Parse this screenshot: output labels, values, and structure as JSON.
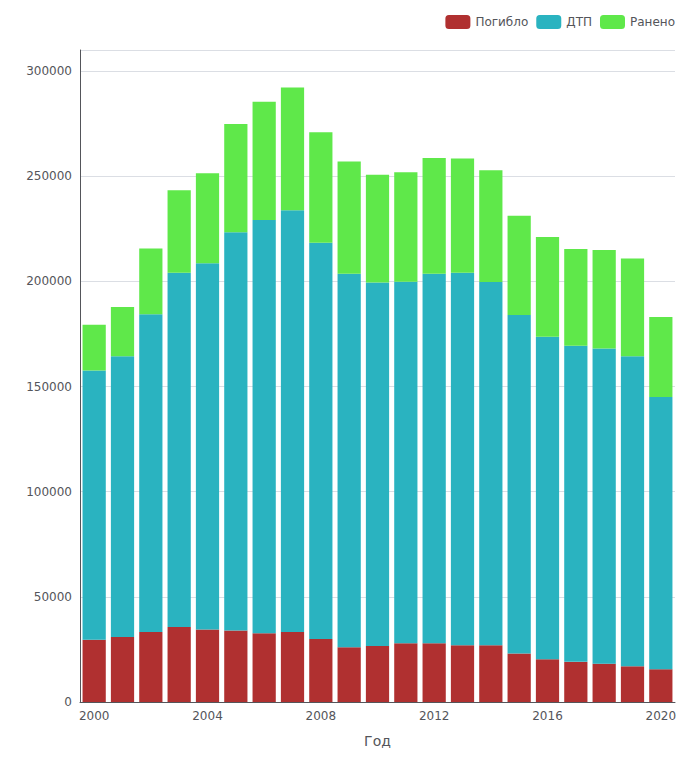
{
  "chart_data": {
    "type": "bar",
    "stacked": true,
    "xlabel": "Год",
    "categories": [
      "2000",
      null,
      null,
      null,
      "2004",
      null,
      null,
      null,
      "2008",
      null,
      null,
      null,
      "2012",
      null,
      null,
      null,
      "2016",
      null,
      null,
      null,
      "2020"
    ],
    "series": [
      {
        "name": "Погибло",
        "color": "#b03030",
        "values": [
          29594,
          30916,
          33243,
          35602,
          34506,
          33957,
          32724,
          33308,
          29936,
          26084,
          26567,
          27953,
          27991,
          27025,
          26963,
          23114,
          20308,
          19088,
          18214,
          16981,
          15583
        ]
      },
      {
        "name": "ДТП",
        "color": "#2ab3c0",
        "values": [
          128002,
          133487,
          151122,
          168466,
          174052,
          189385,
          196416,
          200501,
          188386,
          177519,
          172864,
          171915,
          175606,
          177043,
          172757,
          160886,
          153386,
          150344,
          149885,
          147377,
          129490
        ]
      },
      {
        "name": "Ранено",
        "color": "#5fe84a",
        "values": [
          21805,
          23387,
          31313,
          39281,
          42828,
          51522,
          56222,
          58397,
          52561,
          53431,
          51204,
          51980,
          55021,
          54369,
          53048,
          47197,
          47446,
          45942,
          46754,
          46519,
          37967
        ]
      }
    ],
    "ylim": [
      0,
      310000
    ],
    "yticks": [
      0,
      50000,
      100000,
      150000,
      200000,
      250000,
      300000
    ],
    "grid": true,
    "legend": "upper right"
  }
}
